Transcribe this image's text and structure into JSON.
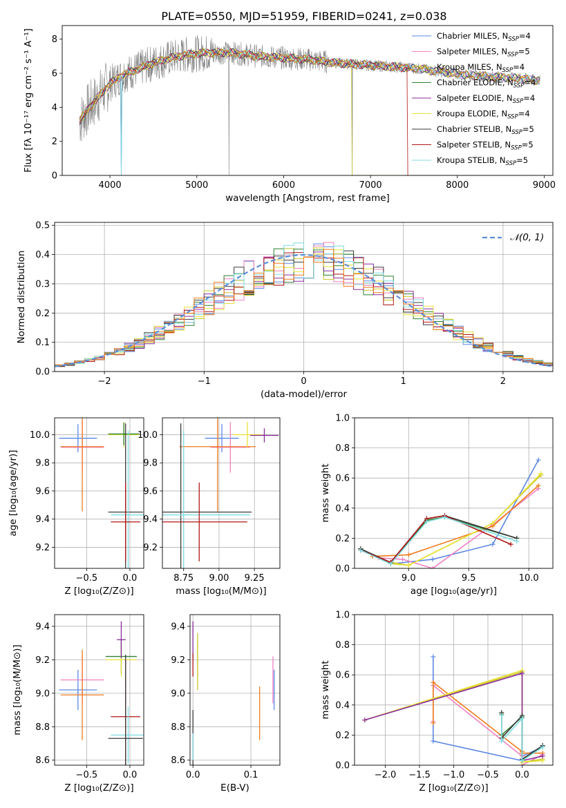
{
  "figure": {
    "title": "PLATE=0550, MJD=51959, FIBERID=0241, z=0.038"
  },
  "colors": {
    "Chabrier MILES": "#5b86e5",
    "Salpeter MILES": "#f07fbf",
    "Kroupa MILES": "#c9c526",
    "Chabrier ELODIE": "#2f7f2f",
    "Salpeter ELODIE": "#8a2a9b",
    "Kroupa ELODIE": "#e7e23a",
    "Chabrier STELIB": "#3a3a3a",
    "Salpeter STELIB": "#b01515",
    "Kroupa STELIB": "#7fdbe0",
    "data": "#808080",
    "orange": "#f07a1a",
    "gaussian": "#5b8fd6"
  },
  "chart_data": [
    {
      "id": "spectrum",
      "type": "line",
      "xlabel": "wavelength [Angstrom, rest frame]",
      "ylabel": "Flux [fλ 10⁻¹⁷ erg cm⁻² s⁻¹ A⁻¹]",
      "xlim": [
        3450,
        9100
      ],
      "ylim": [
        0,
        8.8
      ],
      "xticks": [
        4000,
        5000,
        6000,
        7000,
        8000,
        9000
      ],
      "yticks": [
        0,
        2,
        4,
        6,
        8
      ],
      "legend_position": "top-right",
      "legend": [
        {
          "text": "Chabrier MILES, N",
          "sub": "SSP",
          "suffix": "=4"
        },
        {
          "text": "Salpeter MILES, N",
          "sub": "SSP",
          "suffix": "=5"
        },
        {
          "text": "Kroupa MILES, N",
          "sub": "SSP",
          "suffix": "=4"
        },
        {
          "text": "Chabrier ELODIE, N",
          "sub": "SSP",
          "suffix": "=4"
        },
        {
          "text": "Salpeter ELODIE, N",
          "sub": "SSP",
          "suffix": "=4"
        },
        {
          "text": "Kroupa ELODIE, N",
          "sub": "SSP",
          "suffix": "=4"
        },
        {
          "text": "Chabrier STELIB, N",
          "sub": "SSP",
          "suffix": "=5"
        },
        {
          "text": "Salpeter STELIB, N",
          "sub": "SSP",
          "suffix": "=5"
        },
        {
          "text": "Kroupa STELIB, N",
          "sub": "SSP",
          "suffix": "=5"
        }
      ],
      "continuum": [
        [
          3650,
          3.2
        ],
        [
          3750,
          3.9
        ],
        [
          3900,
          4.8
        ],
        [
          4000,
          5.4
        ],
        [
          4150,
          5.9
        ],
        [
          4300,
          6.2
        ],
        [
          4500,
          6.6
        ],
        [
          4700,
          6.9
        ],
        [
          4900,
          7.1
        ],
        [
          5100,
          7.2
        ],
        [
          5400,
          7.2
        ],
        [
          5700,
          7.0
        ],
        [
          6000,
          6.9
        ],
        [
          6300,
          6.8
        ],
        [
          6600,
          6.6
        ],
        [
          6900,
          6.5
        ],
        [
          7200,
          6.4
        ],
        [
          7500,
          6.3
        ],
        [
          7800,
          6.1
        ],
        [
          8100,
          5.9
        ],
        [
          8400,
          5.8
        ],
        [
          8700,
          5.7
        ],
        [
          8900,
          5.6
        ]
      ],
      "model_range": [
        3650,
        8950
      ],
      "model_cutoffs": [
        {
          "series": "Kroupa MILES",
          "x": 6790
        },
        {
          "series": "Salpeter STELIB",
          "x": 7430
        }
      ]
    },
    {
      "id": "residuals",
      "type": "histogram",
      "xlabel": "(data-model)/error",
      "ylabel": "Normed distribution",
      "xlim": [
        -2.5,
        2.5
      ],
      "ylim": [
        0,
        0.51
      ],
      "xticks": [
        -2,
        -1,
        0,
        1,
        2
      ],
      "yticks": [
        0.0,
        0.1,
        0.2,
        0.3,
        0.4,
        0.5
      ],
      "grid": true,
      "legend_position": "top-right",
      "legend": [
        {
          "text": "𝒩(0, 1)"
        }
      ],
      "bin_width": 0.1,
      "gaussian": {
        "mean": 0,
        "sigma": 1,
        "style": "dashed"
      }
    },
    {
      "id": "age_vs_Z",
      "type": "errorbar",
      "xlabel": "Z [log₁₀(Z/Z⊙)]",
      "ylabel": "age  [log₁₀(age/yr)]",
      "xlim": [
        -0.87,
        0.16
      ],
      "ylim": [
        9.05,
        10.12
      ],
      "xticks": [
        -0.5,
        0.0
      ],
      "yticks": [
        9.2,
        9.4,
        9.6,
        9.8,
        10.0
      ],
      "grid": true,
      "points": [
        {
          "series": "Chabrier MILES",
          "x": -0.6,
          "xerr": 0.22,
          "y": 9.975,
          "yerr": 0.1
        },
        {
          "series": "Salpeter MILES",
          "x": -0.55,
          "xerr": 0.25,
          "y": 9.91,
          "yerr": 0.18
        },
        {
          "series": "orange",
          "x": -0.55,
          "xerr": 0.25,
          "y": 9.915,
          "yerr": 0.46
        },
        {
          "series": "Kroupa ELODIE",
          "x": -0.07,
          "xerr": 0.18,
          "y": 10.0,
          "yerr": 0.09
        },
        {
          "series": "Chabrier ELODIE",
          "x": -0.07,
          "xerr": 0.18,
          "y": 10.005,
          "yerr": 0.08
        },
        {
          "series": "Chabrier STELIB",
          "x": -0.05,
          "xerr": 0.2,
          "y": 9.45,
          "yerr": 0.63
        },
        {
          "series": "Kroupa STELIB",
          "x": -0.02,
          "xerr": 0.2,
          "y": 9.43,
          "yerr": 0.6
        },
        {
          "series": "Salpeter STELIB",
          "x": -0.05,
          "xerr": 0.17,
          "y": 9.38,
          "yerr": 0.28
        }
      ]
    },
    {
      "id": "age_vs_mass",
      "type": "errorbar",
      "xlabel": "mass [log₁₀(M/M⊙)]",
      "ylabel": "",
      "xlim": [
        8.6,
        9.43
      ],
      "ylim": [
        9.05,
        10.12
      ],
      "xticks": [
        8.75,
        9.0,
        9.25
      ],
      "yticks": [
        9.2,
        9.4,
        9.6,
        9.8,
        10.0
      ],
      "grid": true,
      "points": [
        {
          "series": "Chabrier MILES",
          "x": 9.02,
          "xerr": 0.12,
          "y": 9.975,
          "yerr": 0.1
        },
        {
          "series": "Salpeter MILES",
          "x": 9.08,
          "xerr": 0.14,
          "y": 9.91,
          "yerr": 0.18
        },
        {
          "series": "orange",
          "x": 8.99,
          "xerr": 0.27,
          "y": 9.915,
          "yerr": 0.46
        },
        {
          "series": "Kroupa ELODIE",
          "x": 9.2,
          "xerr": 0.1,
          "y": 10.0,
          "yerr": 0.09
        },
        {
          "series": "Salpeter ELODIE",
          "x": 9.32,
          "xerr": 0.1,
          "y": 9.995,
          "yerr": 0.05
        },
        {
          "series": "Chabrier STELIB",
          "x": 8.73,
          "xerr": 0.5,
          "y": 9.45,
          "yerr": 0.63
        },
        {
          "series": "Kroupa STELIB",
          "x": 8.75,
          "xerr": 0.47,
          "y": 9.43,
          "yerr": 0.6
        },
        {
          "series": "Salpeter STELIB",
          "x": 8.86,
          "xerr": 0.34,
          "y": 9.38,
          "yerr": 0.28
        }
      ]
    },
    {
      "id": "weight_vs_age",
      "type": "line",
      "xlabel": "age  [log₁₀(age/yr)]",
      "ylabel": "mass weight",
      "xlim": [
        8.55,
        10.2
      ],
      "ylim": [
        0,
        1.0
      ],
      "xticks": [
        9.0,
        9.5,
        10.0
      ],
      "yticks": [
        0.0,
        0.2,
        0.4,
        0.6,
        0.8,
        1.0
      ],
      "grid": true,
      "series": [
        {
          "name": "Chabrier MILES",
          "x": [
            8.85,
            9.2,
            9.7,
            10.08
          ],
          "y": [
            0.03,
            0.06,
            0.16,
            0.72
          ]
        },
        {
          "name": "Salpeter MILES",
          "x": [
            8.75,
            8.95,
            9.2,
            9.7,
            10.08
          ],
          "y": [
            0.07,
            0.06,
            0.0,
            0.29,
            0.53
          ]
        },
        {
          "name": "orange",
          "x": [
            8.7,
            9.0,
            9.7,
            10.08
          ],
          "y": [
            0.08,
            0.09,
            0.28,
            0.55
          ]
        },
        {
          "name": "Kroupa MILES",
          "x": [
            8.85,
            9.0,
            9.7,
            10.1
          ],
          "y": [
            0.04,
            0.02,
            0.3,
            0.62
          ]
        },
        {
          "name": "Kroupa ELODIE",
          "x": [
            8.85,
            9.0,
            9.7,
            10.1
          ],
          "y": [
            0.03,
            0.02,
            0.3,
            0.63
          ]
        },
        {
          "name": "Chabrier ELODIE",
          "x": [
            8.6,
            8.85,
            9.15,
            9.3,
            9.9
          ],
          "y": [
            0.13,
            0.03,
            0.32,
            0.34,
            0.2
          ]
        },
        {
          "name": "Chabrier STELIB",
          "x": [
            8.6,
            8.85,
            9.15,
            9.3,
            9.9
          ],
          "y": [
            0.13,
            0.04,
            0.33,
            0.35,
            0.2
          ]
        },
        {
          "name": "Salpeter STELIB",
          "x": [
            8.6,
            8.85,
            9.15,
            9.3,
            9.85
          ],
          "y": [
            0.12,
            0.04,
            0.33,
            0.35,
            0.16
          ]
        },
        {
          "name": "Kroupa STELIB",
          "x": [
            8.6,
            8.85,
            9.15,
            9.3,
            9.9
          ],
          "y": [
            0.12,
            0.03,
            0.31,
            0.34,
            0.18
          ]
        }
      ]
    },
    {
      "id": "mass_vs_Z",
      "type": "errorbar",
      "xlabel": "Z [log₁₀(Z/Z⊙)]",
      "ylabel": "mass [log₁₀(M/M⊙)]",
      "xlim": [
        -0.87,
        0.16
      ],
      "ylim": [
        8.57,
        9.47
      ],
      "xticks": [
        -0.5,
        0.0
      ],
      "yticks": [
        8.6,
        8.8,
        9.0,
        9.2,
        9.4
      ],
      "grid": true,
      "points": [
        {
          "series": "Chabrier MILES",
          "x": -0.6,
          "xerr": 0.22,
          "y": 9.02,
          "yerr": 0.12
        },
        {
          "series": "Salpeter MILES",
          "x": -0.55,
          "xerr": 0.25,
          "y": 9.08,
          "yerr": 0.14
        },
        {
          "series": "orange",
          "x": -0.55,
          "xerr": 0.25,
          "y": 8.99,
          "yerr": 0.27
        },
        {
          "series": "Chabrier ELODIE",
          "x": -0.1,
          "xerr": 0.18,
          "y": 9.22,
          "yerr": 0.1
        },
        {
          "series": "Kroupa ELODIE",
          "x": -0.1,
          "xerr": 0.18,
          "y": 9.2,
          "yerr": 0.1
        },
        {
          "series": "Salpeter ELODIE",
          "x": -0.1,
          "xerr": 0.05,
          "y": 9.32,
          "yerr": 0.11
        },
        {
          "series": "Salpeter STELIB",
          "x": -0.05,
          "xerr": 0.17,
          "y": 8.86,
          "yerr": 0.34
        },
        {
          "series": "Kroupa STELIB",
          "x": -0.02,
          "xerr": 0.2,
          "y": 8.75,
          "yerr": 0.17
        },
        {
          "series": "Chabrier STELIB",
          "x": -0.05,
          "xerr": 0.2,
          "y": 8.73,
          "yerr": 0.5
        }
      ]
    },
    {
      "id": "mass_vs_ebv",
      "type": "errorbar",
      "xlabel": "E(B-V)",
      "ylabel": "",
      "xlim": [
        -0.005,
        0.15
      ],
      "ylim": [
        8.57,
        9.47
      ],
      "xticks": [
        0.0,
        0.1
      ],
      "yticks": [
        8.6,
        8.8,
        9.0,
        9.2,
        9.4
      ],
      "grid": true,
      "points": [
        {
          "series": "Salpeter ELODIE",
          "x": 0.0,
          "xerr": 0.0,
          "y": 9.32,
          "yerr": 0.11
        },
        {
          "series": "Salpeter STELIB",
          "x": 0.0,
          "xerr": 0.0,
          "y": 9.17,
          "yerr": 0.07
        },
        {
          "series": "Kroupa ELODIE",
          "x": 0.008,
          "xerr": 0.0,
          "y": 9.2,
          "yerr": 0.1
        },
        {
          "series": "Kroupa MILES",
          "x": 0.008,
          "xerr": 0.0,
          "y": 9.19,
          "yerr": 0.17
        },
        {
          "series": "Chabrier STELIB",
          "x": 0.0,
          "xerr": 0.0,
          "y": 8.73,
          "yerr": 0.17
        },
        {
          "series": "Kroupa STELIB",
          "x": 0.0,
          "xerr": 0.0,
          "y": 8.68,
          "yerr": 0.08
        },
        {
          "series": "orange",
          "x": 0.115,
          "xerr": 0.0,
          "y": 8.88,
          "yerr": 0.16
        },
        {
          "series": "Salpeter MILES",
          "x": 0.138,
          "xerr": 0.0,
          "y": 9.08,
          "yerr": 0.14
        },
        {
          "series": "Chabrier MILES",
          "x": 0.14,
          "xerr": 0.0,
          "y": 9.02,
          "yerr": 0.12
        }
      ]
    },
    {
      "id": "weight_vs_Z",
      "type": "line",
      "xlabel": "Z [log₁₀(Z/Z⊙)]",
      "ylabel": "mass weight",
      "xlim": [
        -2.45,
        0.45
      ],
      "ylim": [
        0,
        1.0
      ],
      "xticks": [
        -2.0,
        -1.5,
        -1.0,
        -0.5,
        0.0
      ],
      "yticks": [
        0.0,
        0.2,
        0.4,
        0.6,
        0.8,
        1.0
      ],
      "grid": true,
      "series": [
        {
          "name": "Chabrier MILES",
          "x": [
            -1.3,
            -1.3,
            0.0,
            0.0,
            0.3
          ],
          "y": [
            0.72,
            0.16,
            0.03,
            0.06,
            0.12
          ]
        },
        {
          "name": "Salpeter MILES",
          "x": [
            -1.3,
            -1.3,
            0.0,
            0.0,
            0.3
          ],
          "y": [
            0.29,
            0.53,
            0.06,
            0.0,
            0.07
          ]
        },
        {
          "name": "orange",
          "x": [
            -1.3,
            -1.3,
            0.0,
            0.0,
            0.3
          ],
          "y": [
            0.28,
            0.55,
            0.09,
            0.08,
            0.08
          ]
        },
        {
          "name": "Kroupa MILES",
          "x": [
            -2.3,
            0.0,
            0.0,
            0.3
          ],
          "y": [
            0.3,
            0.62,
            0.02,
            0.04
          ]
        },
        {
          "name": "Kroupa ELODIE",
          "x": [
            -2.3,
            0.0,
            0.0,
            0.3
          ],
          "y": [
            0.3,
            0.63,
            0.02,
            0.03
          ]
        },
        {
          "name": "Salpeter ELODIE",
          "x": [
            -2.3,
            0.0,
            0.0,
            0.3
          ],
          "y": [
            0.3,
            0.61,
            0.03,
            0.06
          ]
        },
        {
          "name": "Chabrier ELODIE",
          "x": [
            -0.3,
            -0.3,
            0.0,
            0.0,
            0.3
          ],
          "y": [
            0.34,
            0.2,
            0.32,
            0.03,
            0.13
          ]
        },
        {
          "name": "Chabrier STELIB",
          "x": [
            -0.3,
            -0.3,
            0.0,
            0.0,
            0.3
          ],
          "y": [
            0.35,
            0.18,
            0.33,
            0.04,
            0.13
          ]
        },
        {
          "name": "Kroupa STELIB",
          "x": [
            -0.3,
            -0.3,
            0.0,
            0.0,
            0.3
          ],
          "y": [
            0.33,
            0.16,
            0.31,
            0.03,
            0.12
          ]
        }
      ]
    }
  ]
}
